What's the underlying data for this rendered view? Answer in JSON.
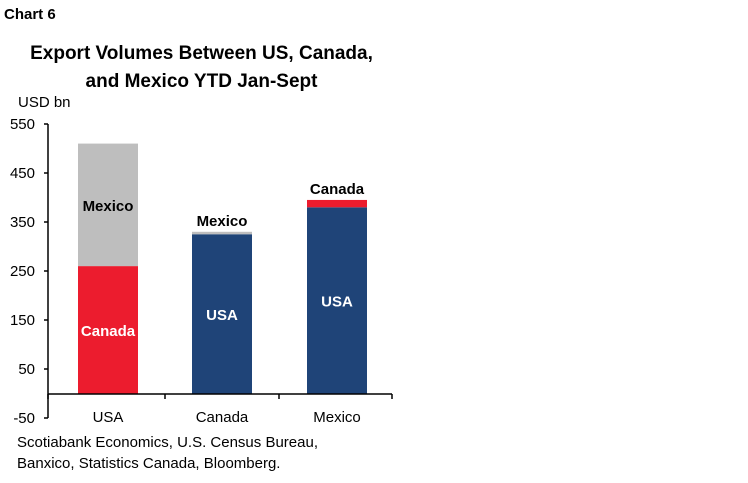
{
  "chart_number": "Chart 6",
  "chart_data": {
    "type": "bar",
    "stacked": true,
    "title_lines": [
      "Export Volumes Between US, Canada,",
      "and Mexico YTD Jan-Sept"
    ],
    "ylabel": "USD bn",
    "ylim": [
      -50,
      550
    ],
    "yticks": [
      550,
      450,
      350,
      250,
      150,
      50,
      -50
    ],
    "categories": [
      "USA",
      "Canada",
      "Mexico"
    ],
    "stacks": [
      {
        "category": "USA",
        "segments": [
          {
            "label": "Canada",
            "value": 260,
            "color": "#ec1c2e",
            "label_color": "#ffffff"
          },
          {
            "label": "Mexico",
            "value": 250,
            "color": "#bebebe",
            "label_color": "#000000"
          }
        ]
      },
      {
        "category": "Canada",
        "segments": [
          {
            "label": "USA",
            "value": 325,
            "color": "#1f4478",
            "label_color": "#ffffff"
          },
          {
            "label": "Mexico",
            "value": 5,
            "color": "#bebebe",
            "label_color": "#000000"
          }
        ]
      },
      {
        "category": "Mexico",
        "segments": [
          {
            "label": "USA",
            "value": 380,
            "color": "#1f4478",
            "label_color": "#ffffff"
          },
          {
            "label": "Canada",
            "value": 15,
            "color": "#ec1c2e",
            "label_color": "#000000"
          }
        ]
      }
    ],
    "grid": false,
    "legend": "none"
  },
  "source": [
    "Scotiabank Economics, U.S. Census Bureau,",
    "Banxico, Statistics Canada, Bloomberg."
  ]
}
